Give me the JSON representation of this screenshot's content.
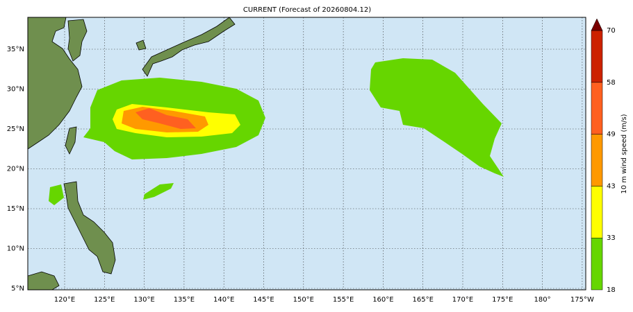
{
  "map": {
    "title": "CURRENT (Forecast of 20260804.12)",
    "lon_ticks": [
      "120°E",
      "125°E",
      "130°E",
      "135°E",
      "140°E",
      "145°E",
      "150°E",
      "155°E",
      "160°E",
      "165°E",
      "170°E",
      "175°E",
      "180°",
      "175°W"
    ],
    "lat_ticks": [
      "35°N",
      "30°N",
      "25°N",
      "20°N",
      "15°N",
      "10°N",
      "5°N"
    ],
    "colorbar": {
      "label": "10 m wind speed (m/s)",
      "ticks": [
        18,
        33,
        43,
        49,
        58,
        70
      ],
      "colors": [
        "#66d600",
        "#ffff00",
        "#ff9900",
        "#ff6020",
        "#cc2200"
      ]
    }
  }
}
